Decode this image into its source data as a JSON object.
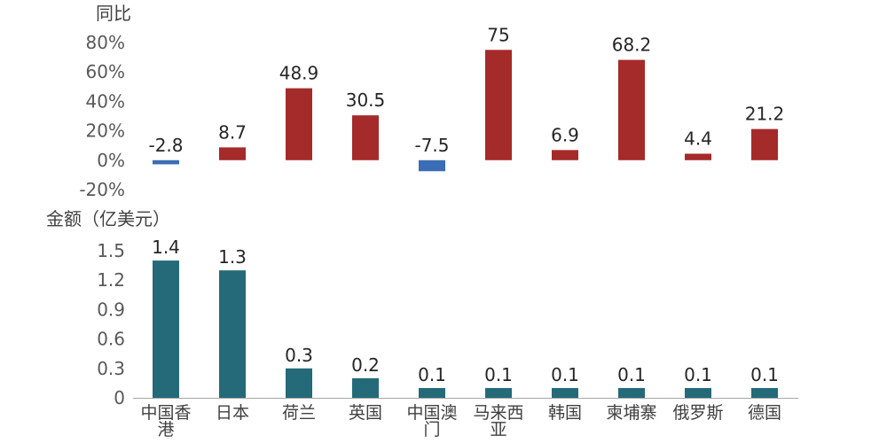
{
  "chart_data": [
    {
      "type": "bar",
      "ylabel": "同比",
      "y_unit": "%",
      "categories": [
        "中国香港",
        "日本",
        "荷兰",
        "英国",
        "中国澳门",
        "马来西亚",
        "韩国",
        "柬埔寨",
        "俄罗斯",
        "德国"
      ],
      "values": [
        -2.8,
        8.7,
        48.9,
        30.5,
        -7.5,
        75,
        6.9,
        68.2,
        4.4,
        21.2
      ],
      "data_labels": [
        "-2.8",
        "8.7",
        "48.9",
        "30.5",
        "-7.5",
        "75",
        "6.9",
        "68.2",
        "4.4",
        "21.2"
      ],
      "ylim": [
        -20,
        80
      ],
      "yticks": [
        80,
        60,
        40,
        20,
        0,
        -20
      ],
      "ytick_labels": [
        "80%",
        "60%",
        "40%",
        "20%",
        "0%",
        "-20%"
      ],
      "positive_color": "#a52a2a",
      "negative_color": "#3a6db5",
      "grid": false
    },
    {
      "type": "bar",
      "ylabel": "金额（亿美元）",
      "categories": [
        "中国香港",
        "日本",
        "荷兰",
        "英国",
        "中国澳门",
        "马来西亚",
        "韩国",
        "柬埔寨",
        "俄罗斯",
        "德国"
      ],
      "category_label_lines": [
        [
          "中国香",
          "港"
        ],
        [
          "日本"
        ],
        [
          "荷兰"
        ],
        [
          "英国"
        ],
        [
          "中国澳",
          "门"
        ],
        [
          "马来西",
          "亚"
        ],
        [
          "韩国"
        ],
        [
          "柬埔寨"
        ],
        [
          "俄罗斯"
        ],
        [
          "德国"
        ]
      ],
      "values": [
        1.4,
        1.3,
        0.3,
        0.2,
        0.1,
        0.1,
        0.1,
        0.1,
        0.1,
        0.1
      ],
      "data_labels": [
        "1.4",
        "1.3",
        "0.3",
        "0.2",
        "0.1",
        "0.1",
        "0.1",
        "0.1",
        "0.1",
        "0.1"
      ],
      "ylim": [
        0,
        1.5
      ],
      "yticks": [
        1.5,
        1.2,
        0.9,
        0.6,
        0.3,
        0
      ],
      "ytick_labels": [
        "1.5",
        "1.2",
        "0.9",
        "0.6",
        "0.3",
        "0"
      ],
      "bar_color": "#256a79",
      "grid": false
    }
  ]
}
